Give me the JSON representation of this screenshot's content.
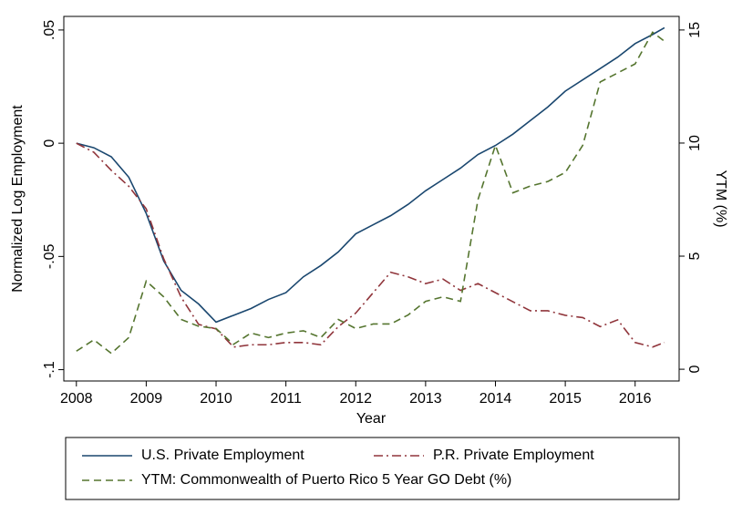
{
  "chart_data": {
    "type": "line",
    "x_label": "Year",
    "y_label": "Normalized Log Employment",
    "y2_label": "YTM (%)",
    "x": [
      2008,
      2008.25,
      2008.5,
      2008.75,
      2009,
      2009.25,
      2009.5,
      2009.75,
      2010,
      2010.25,
      2010.5,
      2010.75,
      2011,
      2011.25,
      2011.5,
      2011.75,
      2012,
      2012.25,
      2012.5,
      2012.75,
      2013,
      2013.25,
      2013.5,
      2013.75,
      2014,
      2014.25,
      2014.5,
      2014.75,
      2015,
      2015.25,
      2015.5,
      2015.75,
      2016,
      2016.25,
      2016.42
    ],
    "series": [
      {
        "name": "U.S. Private Employment",
        "color": "#1a476f",
        "dash": "solid",
        "values": [
          0,
          -0.002,
          -0.006,
          -0.015,
          -0.031,
          -0.052,
          -0.065,
          -0.071,
          -0.079,
          -0.076,
          -0.073,
          -0.069,
          -0.066,
          -0.059,
          -0.054,
          -0.048,
          -0.04,
          -0.036,
          -0.032,
          -0.027,
          -0.021,
          -0.016,
          -0.011,
          -0.005,
          -0.001,
          0.004,
          0.01,
          0.016,
          0.023,
          0.028,
          0.033,
          0.038,
          0.044,
          0.048,
          0.051
        ]
      },
      {
        "name": "P.R. Private Employment",
        "color": "#90353b",
        "dash": "dashdot",
        "values": [
          0,
          -0.004,
          -0.012,
          -0.019,
          -0.029,
          -0.051,
          -0.068,
          -0.08,
          -0.082,
          -0.09,
          -0.089,
          -0.089,
          -0.088,
          -0.088,
          -0.089,
          -0.081,
          -0.075,
          -0.066,
          -0.057,
          -0.059,
          -0.062,
          -0.06,
          -0.065,
          -0.062,
          -0.066,
          -0.07,
          -0.074,
          -0.074,
          -0.076,
          -0.077,
          -0.081,
          -0.078,
          -0.088,
          -0.09,
          -0.088
        ]
      },
      {
        "name": "YTM: Commonwealth of Puerto Rico 5 Year GO Debt (%)",
        "color": "#55752f",
        "dash": "dash",
        "axis": "y2",
        "values": [
          0.8,
          1.3,
          0.7,
          1.4,
          3.9,
          3.2,
          2.2,
          1.9,
          1.8,
          1.1,
          1.6,
          1.4,
          1.6,
          1.7,
          1.4,
          2.2,
          1.8,
          2.0,
          2.0,
          2.4,
          3.0,
          3.2,
          3.0,
          7.5,
          9.9,
          7.8,
          8.1,
          8.3,
          8.7,
          9.9,
          12.7,
          13.1,
          13.5,
          14.9,
          14.5
        ]
      }
    ],
    "xlim": [
      2007.82,
      2016.63
    ],
    "xticks": [
      2008,
      2009,
      2010,
      2011,
      2012,
      2013,
      2014,
      2015,
      2016
    ],
    "ylim": [
      -0.105,
      0.056
    ],
    "yticks": [
      {
        "value": -0.1,
        "label": "-.1"
      },
      {
        "value": -0.05,
        "label": "-.05"
      },
      0,
      {
        "value": 0.05,
        "label": ".05"
      }
    ],
    "y2lim": [
      -0.52,
      15.6
    ],
    "y2ticks": [
      0,
      5,
      10,
      15
    ],
    "grid": false,
    "legend": "bottom"
  }
}
